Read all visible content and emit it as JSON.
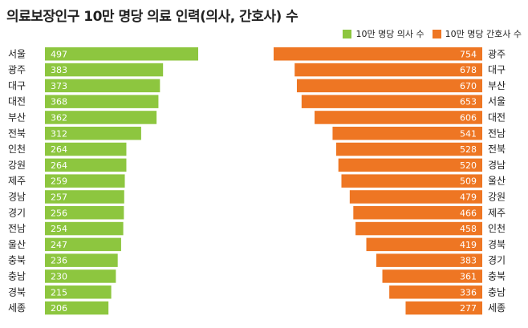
{
  "title": "의료보장인구 10만 명당 의료 인력(의사, 간호사) 수",
  "legend": [
    {
      "label": "10만 명당 의사 수",
      "color": "#8dc63f"
    },
    {
      "label": "10만 명당 간호사 수",
      "color": "#ee7623"
    }
  ],
  "chart_data": [
    {
      "type": "bar",
      "orientation": "horizontal",
      "series_label": "10만 명당 의사 수",
      "color": "#8dc63f",
      "categories": [
        "서울",
        "광주",
        "대구",
        "대전",
        "부산",
        "전북",
        "인천",
        "강원",
        "제주",
        "경남",
        "경기",
        "전남",
        "울산",
        "충북",
        "충남",
        "경북",
        "세종"
      ],
      "values": [
        497,
        383,
        373,
        368,
        362,
        312,
        264,
        264,
        259,
        257,
        256,
        254,
        247,
        236,
        230,
        215,
        206
      ]
    },
    {
      "type": "bar",
      "orientation": "horizontal",
      "series_label": "10만 명당 간호사 수",
      "color": "#ee7623",
      "categories": [
        "광주",
        "대구",
        "부산",
        "서울",
        "대전",
        "전남",
        "전북",
        "경남",
        "울산",
        "강원",
        "제주",
        "인천",
        "경북",
        "경기",
        "충북",
        "충남",
        "세종"
      ],
      "values": [
        754,
        678,
        670,
        653,
        606,
        541,
        528,
        520,
        509,
        479,
        466,
        458,
        419,
        383,
        361,
        336,
        277
      ]
    }
  ]
}
